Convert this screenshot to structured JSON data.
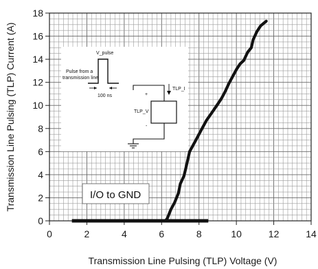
{
  "chart_data": {
    "type": "line",
    "xlabel": "Transmission Line Pulsing (TLP) Voltage (V)",
    "ylabel": "Transmission Line Pulsing (TLP) Current (A)",
    "xlim": [
      0,
      14
    ],
    "ylim": [
      0,
      18
    ],
    "x_ticks": [
      0,
      2,
      4,
      6,
      8,
      10,
      12,
      14
    ],
    "y_ticks": [
      0,
      2,
      4,
      6,
      8,
      10,
      12,
      14,
      16,
      18
    ],
    "grid": true,
    "series": [
      {
        "name": "I/O to GND",
        "color": "#111111",
        "points": [
          [
            1.2,
            0.0
          ],
          [
            6.2,
            0.0
          ],
          [
            8.5,
            0.0
          ],
          [
            6.3,
            0.2
          ],
          [
            6.5,
            1.0
          ],
          [
            6.7,
            1.6
          ],
          [
            6.9,
            2.4
          ],
          [
            7.0,
            3.2
          ],
          [
            7.2,
            3.9
          ],
          [
            7.3,
            4.6
          ],
          [
            7.4,
            5.3
          ],
          [
            7.5,
            6.0
          ],
          [
            7.7,
            6.6
          ],
          [
            7.9,
            7.2
          ],
          [
            8.1,
            7.8
          ],
          [
            8.4,
            8.7
          ],
          [
            8.7,
            9.4
          ],
          [
            9.0,
            10.1
          ],
          [
            9.2,
            10.6
          ],
          [
            9.4,
            11.2
          ],
          [
            9.6,
            11.9
          ],
          [
            9.8,
            12.5
          ],
          [
            10.0,
            13.1
          ],
          [
            10.2,
            13.6
          ],
          [
            10.4,
            13.9
          ],
          [
            10.6,
            14.6
          ],
          [
            10.8,
            15.0
          ],
          [
            10.9,
            15.7
          ],
          [
            11.1,
            16.4
          ],
          [
            11.3,
            16.9
          ],
          [
            11.6,
            17.3
          ]
        ]
      }
    ],
    "legend": {
      "label": "I/O to GND"
    },
    "inset": {
      "pulse_label": "V_pulse",
      "source_label_line1": "Pulse from a",
      "source_label_line2": "transmission line",
      "duration_label": "100 ns",
      "current_label": "TLP_I",
      "voltage_label": "TLP_V",
      "plus": "+",
      "minus": "-"
    }
  }
}
